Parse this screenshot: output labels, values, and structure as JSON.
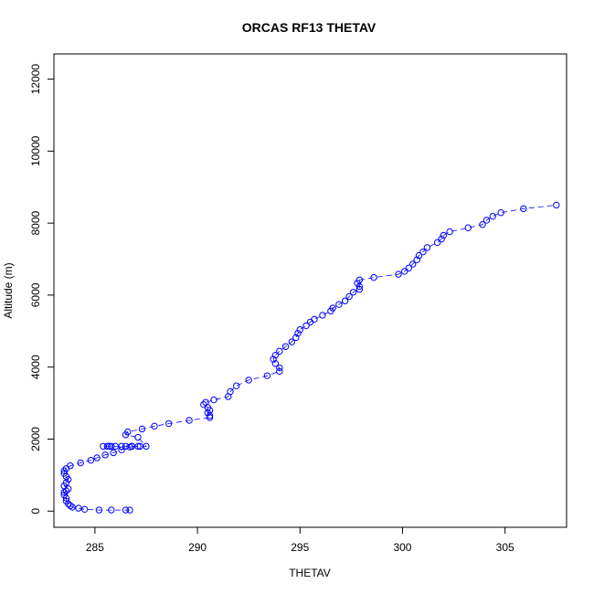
{
  "chart_data": {
    "type": "scatter",
    "title": "ORCAS RF13 THETAV",
    "xlabel": "THETAV",
    "ylabel": "Altitude (m)",
    "xlim": [
      283,
      308
    ],
    "ylim": [
      -450,
      12700
    ],
    "xticks": [
      285,
      290,
      295,
      300,
      305
    ],
    "yticks": [
      0,
      2000,
      4000,
      6000,
      8000,
      10000,
      12000
    ],
    "grid": false,
    "marker": "open-circle",
    "connected": true,
    "color": "#0000ff",
    "series": [
      {
        "x": [
          286.7,
          286.5,
          285.8,
          285.2,
          284.5,
          284.2,
          283.9,
          283.8,
          283.7,
          283.6,
          283.6,
          283.5,
          283.5,
          283.6,
          283.7,
          283.5,
          283.6,
          283.7,
          283.6,
          283.5,
          283.5,
          283.6,
          283.8,
          284.3,
          284.8,
          285.1,
          285.5,
          285.9,
          286.3,
          286.7,
          287.1,
          286.8,
          286.3,
          285.7,
          285.4,
          285.6,
          285.8,
          286.0,
          286.5,
          286.8,
          287.2,
          287.5,
          287.1,
          286.5,
          286.6,
          287.3,
          287.9,
          288.6,
          289.6,
          290.6,
          290.6,
          290.5,
          290.6,
          290.5,
          290.3,
          290.4,
          290.8,
          291.5,
          291.6,
          291.9,
          292.5,
          293.4,
          294.0,
          294.0,
          293.8,
          293.7,
          293.8,
          294.0,
          294.3,
          294.6,
          294.8,
          294.9,
          295.0,
          295.3,
          295.5,
          295.7,
          296.1,
          296.5,
          296.6,
          296.9,
          297.2,
          297.4,
          297.6,
          297.9,
          297.9,
          297.8,
          297.9,
          298.6,
          299.8,
          300.1,
          300.3,
          300.5,
          300.7,
          300.8,
          301.0,
          301.2,
          301.7,
          301.9,
          302.0,
          302.3,
          303.2,
          303.9,
          304.1,
          304.4,
          304.8,
          305.9,
          307.5
        ],
        "y": [
          30,
          30,
          30,
          30,
          50,
          80,
          110,
          150,
          200,
          280,
          360,
          450,
          520,
          560,
          620,
          700,
          790,
          880,
          960,
          1050,
          1120,
          1180,
          1260,
          1340,
          1410,
          1480,
          1560,
          1620,
          1700,
          1780,
          1800,
          1800,
          1800,
          1800,
          1800,
          1800,
          1800,
          1800,
          1800,
          1800,
          1800,
          1800,
          2050,
          2120,
          2200,
          2280,
          2360,
          2430,
          2520,
          2600,
          2650,
          2730,
          2800,
          2880,
          2960,
          3020,
          3090,
          3180,
          3320,
          3480,
          3640,
          3760,
          3880,
          3980,
          4100,
          4220,
          4330,
          4440,
          4570,
          4700,
          4820,
          4940,
          5040,
          5150,
          5250,
          5330,
          5440,
          5560,
          5640,
          5740,
          5840,
          5960,
          6080,
          6160,
          6240,
          6330,
          6420,
          6490,
          6580,
          6660,
          6750,
          6860,
          6980,
          7100,
          7200,
          7320,
          7460,
          7560,
          7660,
          7760,
          7870,
          7960,
          8080,
          8190,
          8290,
          8400,
          8500
        ]
      }
    ]
  }
}
